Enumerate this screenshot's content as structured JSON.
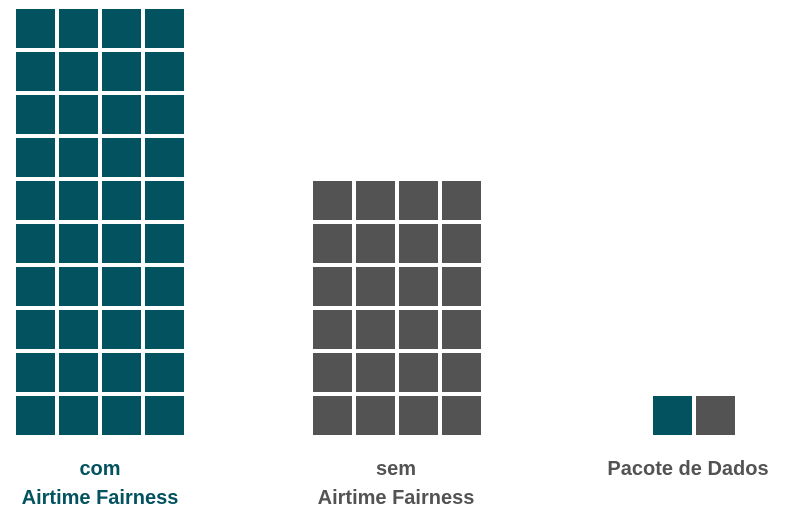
{
  "colors": {
    "with": "#02525f",
    "without": "#545354",
    "text_with": "#02525f",
    "text_other": "#545354"
  },
  "chart_data": {
    "type": "bar",
    "title": "",
    "unit_block_legend": "Pacote de Dados",
    "columns": [
      {
        "name": "with-airtime-fairness",
        "label_line1": "com",
        "label_line2": "Airtime Fairness",
        "blocks_per_row": 4,
        "rows": 10,
        "color_key": "with"
      },
      {
        "name": "without-airtime-fairness",
        "label_line1": "sem",
        "label_line2": "Airtime Fairness",
        "blocks_per_row": 4,
        "rows": 6,
        "color_key": "without"
      }
    ],
    "legend": {
      "label": "Pacote de Dados",
      "swatches": [
        "with",
        "without"
      ]
    }
  }
}
